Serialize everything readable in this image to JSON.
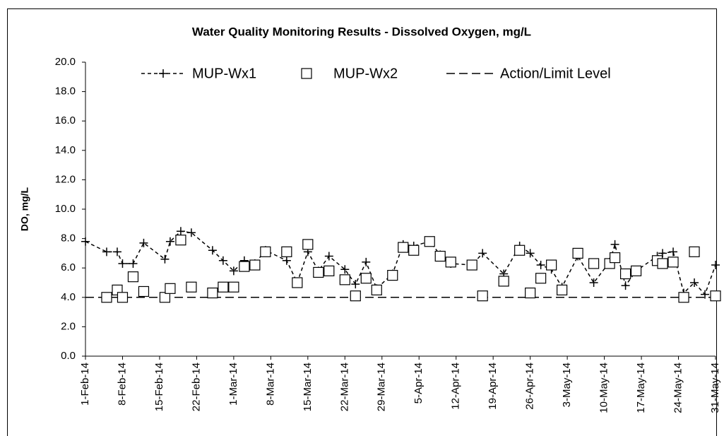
{
  "chart_data": {
    "type": "line",
    "title": "Water Quality Monitoring Results - Dissolved Oxygen, mg/L",
    "y_label": "DO, mg/L",
    "x": [
      "2014-02-01",
      "2014-02-05",
      "2014-02-07",
      "2014-02-08",
      "2014-02-10",
      "2014-02-12",
      "2014-02-16",
      "2014-02-17",
      "2014-02-19",
      "2014-02-21",
      "2014-02-25",
      "2014-02-27",
      "2014-03-01",
      "2014-03-03",
      "2014-03-05",
      "2014-03-07",
      "2014-03-11",
      "2014-03-13",
      "2014-03-15",
      "2014-03-17",
      "2014-03-19",
      "2014-03-22",
      "2014-03-24",
      "2014-03-26",
      "2014-03-28",
      "2014-03-31",
      "2014-04-02",
      "2014-04-04",
      "2014-04-07",
      "2014-04-09",
      "2014-04-11",
      "2014-04-15",
      "2014-04-17",
      "2014-04-21",
      "2014-04-24",
      "2014-04-26",
      "2014-04-28",
      "2014-04-30",
      "2014-05-02",
      "2014-05-05",
      "2014-05-08",
      "2014-05-11",
      "2014-05-12",
      "2014-05-14",
      "2014-05-16",
      "2014-05-20",
      "2014-05-21",
      "2014-05-23",
      "2014-05-25",
      "2014-05-27",
      "2014-05-29",
      "2014-05-31"
    ],
    "series": [
      {
        "name": "MUP-Wx1",
        "color": "#000000",
        "marker": "plus",
        "line": "dashed",
        "values": [
          7.8,
          7.1,
          7.1,
          6.3,
          6.3,
          7.7,
          6.6,
          7.8,
          8.5,
          8.4,
          7.2,
          6.5,
          5.8,
          6.5,
          6.3,
          7.2,
          6.5,
          5.0,
          7.1,
          5.8,
          6.8,
          5.9,
          4.9,
          6.4,
          4.6,
          5.6,
          7.6,
          7.5,
          7.8,
          6.9,
          6.3,
          6.2,
          7.0,
          5.6,
          7.5,
          7.0,
          6.2,
          5.9,
          4.7,
          6.8,
          5.0,
          6.4,
          7.6,
          4.8,
          5.8,
          6.8,
          7.0,
          7.1,
          4.3,
          5.0,
          4.2,
          6.2
        ]
      },
      {
        "name": "MUP-Wx2",
        "color": "#000000",
        "marker": "square",
        "line": "none",
        "values": [
          null,
          4.0,
          4.5,
          4.0,
          5.4,
          4.4,
          4.0,
          4.6,
          7.9,
          4.7,
          4.3,
          4.7,
          4.7,
          6.1,
          6.2,
          7.1,
          7.1,
          5.0,
          7.6,
          5.7,
          5.8,
          5.2,
          4.1,
          5.3,
          4.5,
          5.5,
          7.4,
          7.2,
          7.8,
          6.8,
          6.4,
          6.2,
          4.1,
          5.1,
          7.2,
          4.3,
          5.3,
          6.2,
          4.5,
          7.0,
          6.3,
          6.3,
          6.7,
          5.6,
          5.8,
          6.5,
          6.3,
          6.4,
          4.0,
          7.1,
          null,
          4.1
        ]
      }
    ],
    "reference_line": {
      "name": "Action/Limit Level",
      "value": 4.0,
      "color": "#000000"
    },
    "xlim": [
      "2014-02-01",
      "2014-05-31"
    ],
    "xticks": [
      {
        "value": "2014-02-01",
        "label": "1-Feb-14"
      },
      {
        "value": "2014-02-08",
        "label": "8-Feb-14"
      },
      {
        "value": "2014-02-15",
        "label": "15-Feb-14"
      },
      {
        "value": "2014-02-22",
        "label": "22-Feb-14"
      },
      {
        "value": "2014-03-01",
        "label": "1-Mar-14"
      },
      {
        "value": "2014-03-08",
        "label": "8-Mar-14"
      },
      {
        "value": "2014-03-15",
        "label": "15-Mar-14"
      },
      {
        "value": "2014-03-22",
        "label": "22-Mar-14"
      },
      {
        "value": "2014-03-29",
        "label": "29-Mar-14"
      },
      {
        "value": "2014-04-05",
        "label": "5-Apr-14"
      },
      {
        "value": "2014-04-12",
        "label": "12-Apr-14"
      },
      {
        "value": "2014-04-19",
        "label": "19-Apr-14"
      },
      {
        "value": "2014-04-26",
        "label": "26-Apr-14"
      },
      {
        "value": "2014-05-03",
        "label": "3-May-14"
      },
      {
        "value": "2014-05-10",
        "label": "10-May-14"
      },
      {
        "value": "2014-05-17",
        "label": "17-May-14"
      },
      {
        "value": "2014-05-24",
        "label": "24-May-14"
      },
      {
        "value": "2014-05-31",
        "label": "31-May-14"
      }
    ],
    "ylim": [
      0,
      20
    ],
    "yticks": [
      {
        "value": 0,
        "label": "0.0"
      },
      {
        "value": 2,
        "label": "2.0"
      },
      {
        "value": 4,
        "label": "4.0"
      },
      {
        "value": 6,
        "label": "6.0"
      },
      {
        "value": 8,
        "label": "8.0"
      },
      {
        "value": 10,
        "label": "10.0"
      },
      {
        "value": 12,
        "label": "12.0"
      },
      {
        "value": 14,
        "label": "14.0"
      },
      {
        "value": 16,
        "label": "16.0"
      },
      {
        "value": 18,
        "label": "18.0"
      },
      {
        "value": 20,
        "label": "20.0"
      }
    ],
    "grid": false,
    "legend": "top"
  }
}
